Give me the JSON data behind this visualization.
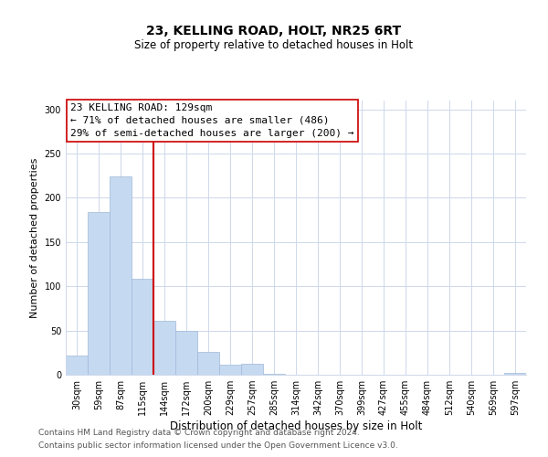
{
  "title1": "23, KELLING ROAD, HOLT, NR25 6RT",
  "title2": "Size of property relative to detached houses in Holt",
  "xlabel": "Distribution of detached houses by size in Holt",
  "ylabel": "Number of detached properties",
  "bar_labels": [
    "30sqm",
    "59sqm",
    "87sqm",
    "115sqm",
    "144sqm",
    "172sqm",
    "200sqm",
    "229sqm",
    "257sqm",
    "285sqm",
    "314sqm",
    "342sqm",
    "370sqm",
    "399sqm",
    "427sqm",
    "455sqm",
    "484sqm",
    "512sqm",
    "540sqm",
    "569sqm",
    "597sqm"
  ],
  "bar_values": [
    22,
    184,
    224,
    108,
    61,
    50,
    26,
    11,
    12,
    1,
    0,
    0,
    0,
    0,
    0,
    0,
    0,
    0,
    0,
    0,
    2
  ],
  "bar_color": "#c5d9f1",
  "bar_edge_color": "#a0b8d8",
  "vline_x": 3.5,
  "vline_color": "#cc0000",
  "ylim": [
    0,
    310
  ],
  "yticks": [
    0,
    50,
    100,
    150,
    200,
    250,
    300
  ],
  "annotation_title": "23 KELLING ROAD: 129sqm",
  "annotation_line1": "← 71% of detached houses are smaller (486)",
  "annotation_line2": "29% of semi-detached houses are larger (200) →",
  "annotation_box_color": "#ffffff",
  "annotation_box_edge": "#cc0000",
  "footer1": "Contains HM Land Registry data © Crown copyright and database right 2024.",
  "footer2": "Contains public sector information licensed under the Open Government Licence v3.0.",
  "background_color": "#ffffff",
  "grid_color": "#cdd8ea",
  "title1_fontsize": 10,
  "title2_fontsize": 8.5,
  "xlabel_fontsize": 8.5,
  "ylabel_fontsize": 8,
  "tick_fontsize": 7,
  "annotation_fontsize": 8,
  "footer_fontsize": 6.5
}
